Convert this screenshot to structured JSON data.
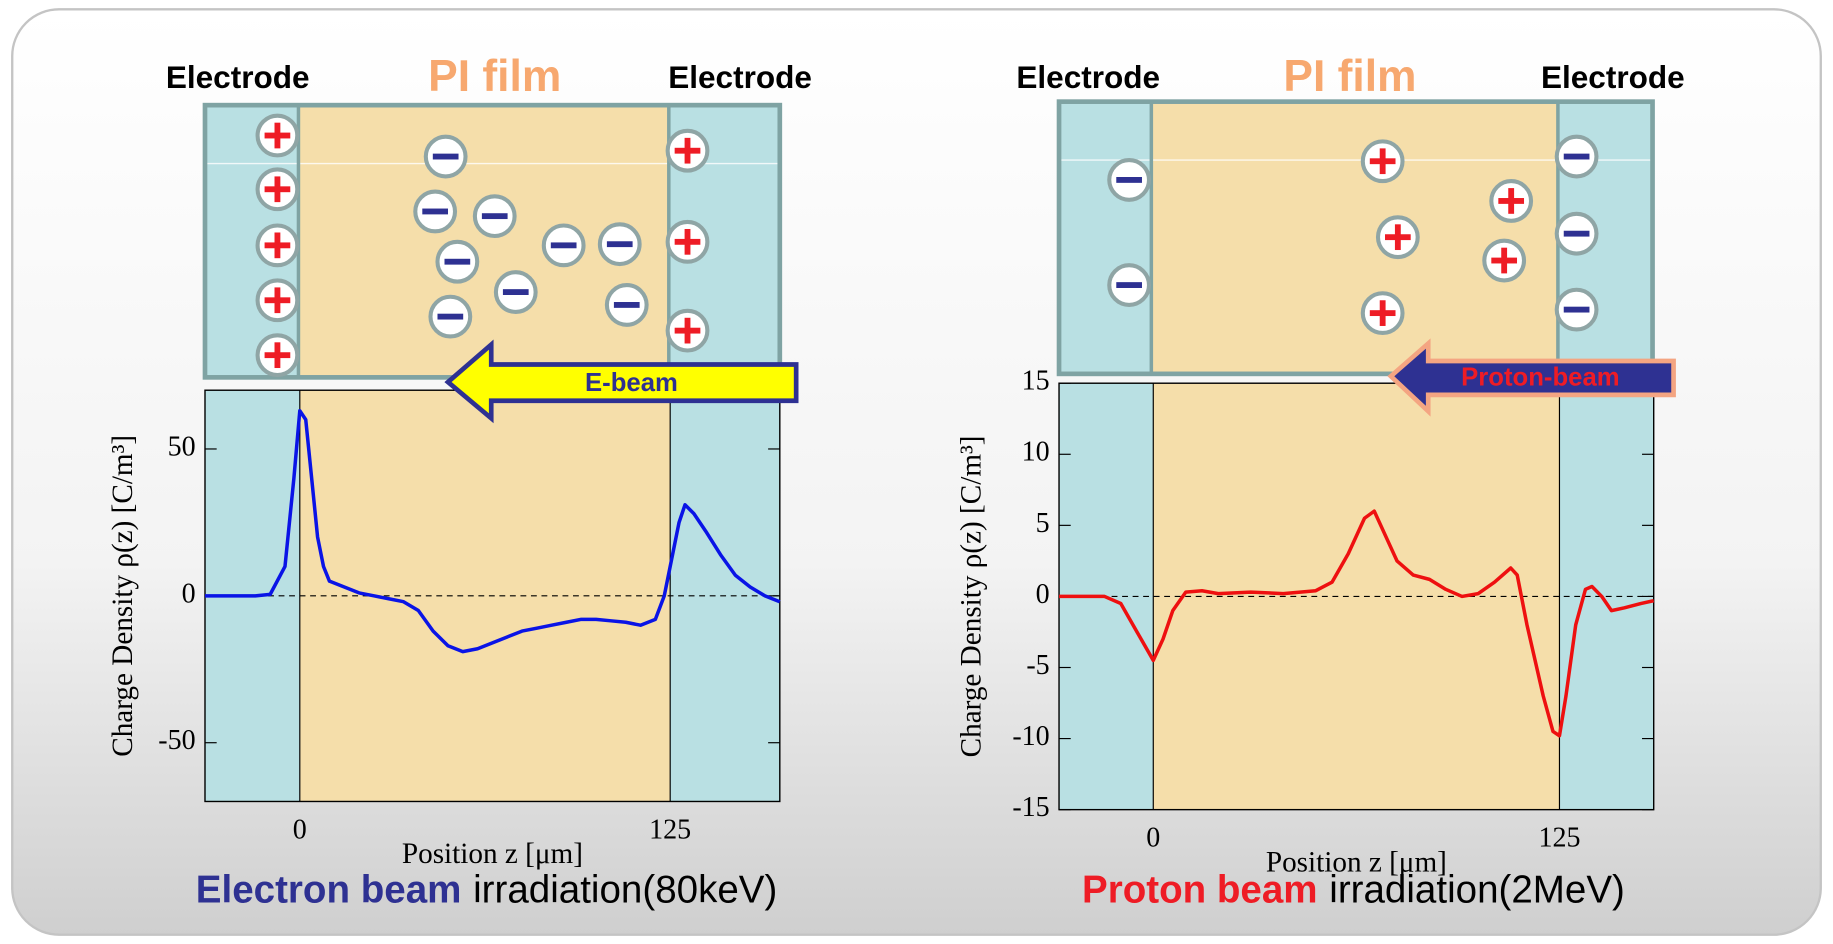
{
  "panels": [
    {
      "electrode_left": "Electrode",
      "film": "PI film",
      "electrode_right": "Electrode",
      "beam": "E-beam",
      "caption_beam": "Electron beam",
      "caption_rest": "irradiation(80keV)",
      "caption_color": "#2e3192"
    },
    {
      "electrode_left": "Electrode",
      "film": "PI film",
      "electrode_right": "Electrode",
      "beam": "Proton-beam",
      "caption_beam": "Proton beam",
      "caption_rest": "irradiation(2MeV)",
      "caption_color": "#ee1c25"
    }
  ],
  "chart_data": [
    {
      "type": "line",
      "xlabel": "Position z [μm]",
      "ylabel": "Charge Density ρ(z) [C/m³]",
      "color": "#0a14e6",
      "xlim": [
        -32,
        162
      ],
      "ylim": [
        -70,
        70
      ],
      "xticks": [
        0,
        125
      ],
      "yticks": [
        -50,
        0,
        50
      ],
      "x": [
        -32,
        -15,
        -10,
        -5,
        -2,
        0,
        2,
        4,
        6,
        8,
        10,
        15,
        20,
        25,
        30,
        35,
        40,
        45,
        50,
        55,
        60,
        65,
        70,
        75,
        80,
        85,
        90,
        95,
        100,
        105,
        110,
        115,
        120,
        123,
        125,
        128,
        130,
        133,
        137,
        142,
        147,
        152,
        157,
        162
      ],
      "values": [
        0,
        0,
        0.5,
        10,
        40,
        63,
        60,
        40,
        20,
        10,
        5,
        3,
        1,
        0,
        -1,
        -2,
        -5,
        -12,
        -17,
        -19,
        -18,
        -16,
        -14,
        -12,
        -11,
        -10,
        -9,
        -8,
        -8,
        -8.5,
        -9,
        -10,
        -8,
        0,
        10,
        25,
        31,
        28,
        22,
        14,
        7,
        3,
        0,
        -2
      ]
    },
    {
      "type": "line",
      "xlabel": "Position z [μm]",
      "ylabel": "Charge Density ρ(z) [C/m³]",
      "color": "#ee1010",
      "xlim": [
        -29,
        154
      ],
      "ylim": [
        -15,
        15
      ],
      "xticks": [
        0,
        125
      ],
      "yticks": [
        -15,
        -10,
        -5,
        0,
        5,
        10,
        15
      ],
      "x": [
        -29,
        -15,
        -10,
        -5,
        0,
        3,
        6,
        10,
        15,
        20,
        30,
        40,
        50,
        55,
        60,
        65,
        68,
        72,
        75,
        80,
        85,
        90,
        95,
        100,
        105,
        110,
        112,
        115,
        120,
        123,
        125,
        127,
        130,
        133,
        135,
        138,
        141,
        145,
        150,
        154
      ],
      "values": [
        0,
        0,
        -0.5,
        -2.5,
        -4.5,
        -3,
        -1,
        0.3,
        0.4,
        0.2,
        0.3,
        0.2,
        0.4,
        1,
        3,
        5.5,
        6,
        4,
        2.5,
        1.5,
        1.2,
        0.5,
        0,
        0.2,
        1,
        2,
        1.5,
        -2,
        -7,
        -9.5,
        -9.8,
        -7,
        -2,
        0.5,
        0.7,
        0,
        -1,
        -0.8,
        -0.5,
        -0.3
      ]
    }
  ]
}
